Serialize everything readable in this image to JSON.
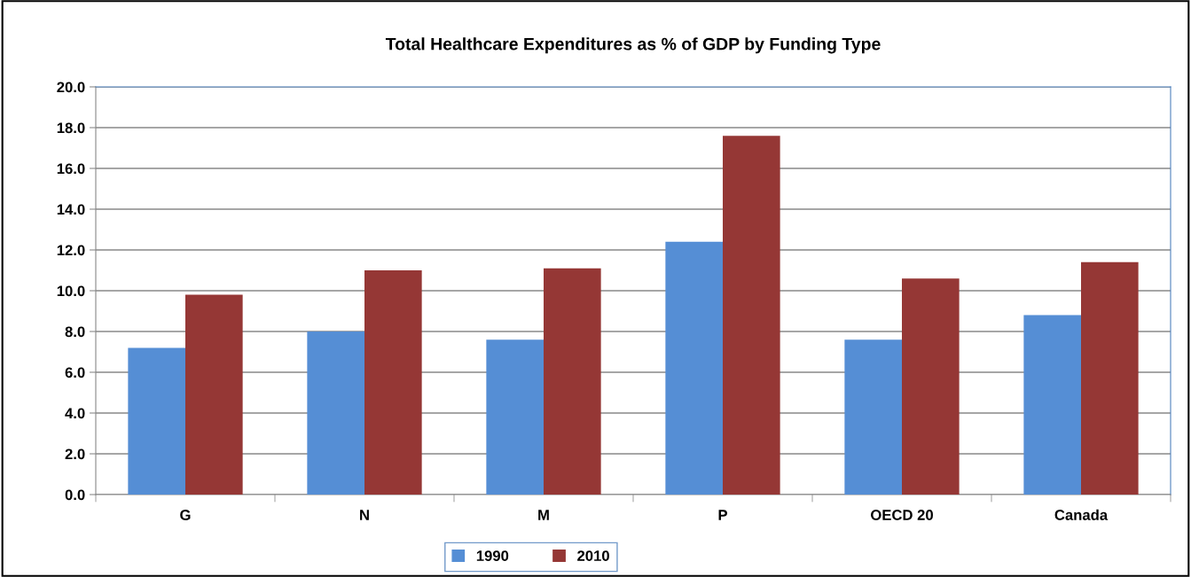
{
  "chart_data": {
    "type": "bar",
    "title": "Total Healthcare Expenditures as % of GDP by Funding Type",
    "categories": [
      "G",
      "N",
      "M",
      "P",
      "OECD 20",
      "Canada"
    ],
    "series": [
      {
        "name": "1990",
        "color": "#558ed5",
        "values": [
          7.2,
          8.0,
          7.6,
          12.4,
          7.6,
          8.8
        ]
      },
      {
        "name": "2010",
        "color": "#953735",
        "values": [
          9.8,
          11.0,
          11.1,
          17.6,
          10.6,
          11.4
        ]
      }
    ],
    "ylim": [
      0,
      20
    ],
    "yticks": [
      {
        "value": 0,
        "label": "0.0"
      },
      {
        "value": 2,
        "label": "2.0"
      },
      {
        "value": 4,
        "label": "4.0"
      },
      {
        "value": 6,
        "label": "6.0"
      },
      {
        "value": 8,
        "label": "8.0"
      },
      {
        "value": 10,
        "label": "10.0"
      },
      {
        "value": 12,
        "label": "12.0"
      },
      {
        "value": 14,
        "label": "14.0"
      },
      {
        "value": 16,
        "label": "16.0"
      },
      {
        "value": 18,
        "label": "18.0"
      },
      {
        "value": 20,
        "label": "20.0"
      }
    ],
    "grid": "y",
    "legend": "bottom"
  }
}
